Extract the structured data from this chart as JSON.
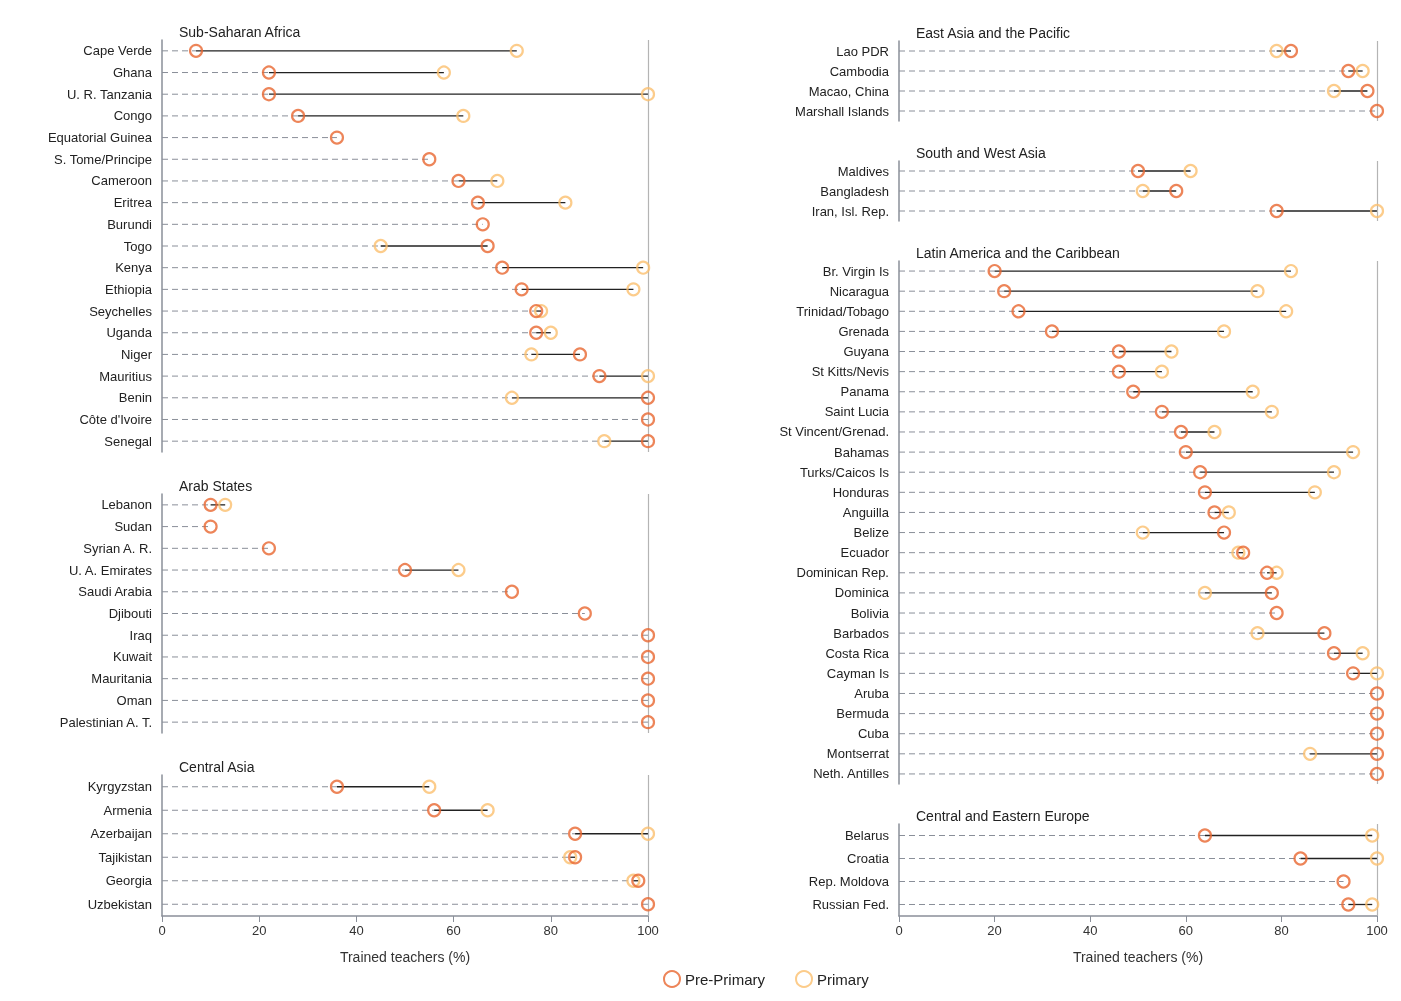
{
  "chart_data": [
    {
      "type": "scatter",
      "title": "Sub-Saharan Africa",
      "orientation": "horizontal",
      "marker": "circle",
      "grid": "y",
      "tick_labels": "y",
      "xlim": [
        0,
        100
      ],
      "xticks": [
        0,
        20,
        40,
        60,
        80,
        100
      ],
      "ref_lines": [
        {
          "axis": "x",
          "value": 100,
          "color": "#b4b4b4"
        }
      ],
      "categories": [
        "Cape Verde",
        "Ghana",
        "U. R. Tanzania",
        "Congo",
        "Equatorial Guinea",
        "S. Tome/Principe",
        "Cameroon",
        "Eritrea",
        "Burundi",
        "Togo",
        "Kenya",
        "Ethiopia",
        "Seychelles",
        "Uganda",
        "Niger",
        "Mauritius",
        "Benin",
        "Côte d'Ivoire",
        "Senegal"
      ],
      "series": [
        {
          "color": "#e8672f",
          "values": [
            7,
            22,
            22,
            28,
            36,
            55,
            61,
            65,
            66,
            67,
            70,
            74,
            77,
            77,
            86,
            90,
            100,
            100,
            100
          ]
        },
        {
          "color": "#fbbf6e",
          "values": [
            73,
            58,
            100,
            62,
            null,
            null,
            69,
            83,
            null,
            45,
            99,
            97,
            78,
            80,
            76,
            100,
            72,
            null,
            91
          ]
        }
      ]
    },
    {
      "type": "scatter",
      "title": "Arab States",
      "orientation": "horizontal",
      "marker": "circle",
      "grid": "y",
      "tick_labels": "y",
      "xlim": [
        0,
        100
      ],
      "xticks": [
        0,
        20,
        40,
        60,
        80,
        100
      ],
      "ref_lines": [
        {
          "axis": "x",
          "value": 100,
          "color": "#b4b4b4"
        }
      ],
      "categories": [
        "Lebanon",
        "Sudan",
        "Syrian A. R.",
        "U. A. Emirates",
        "Saudi Arabia",
        "Djibouti",
        "Iraq",
        "Kuwait",
        "Mauritania",
        "Oman",
        "Palestinian A. T."
      ],
      "series": [
        {
          "color": "#e8672f",
          "values": [
            10,
            10,
            22,
            50,
            72,
            87,
            100,
            100,
            100,
            100,
            100
          ]
        },
        {
          "color": "#fbbf6e",
          "values": [
            13,
            null,
            null,
            61,
            null,
            null,
            null,
            null,
            null,
            null,
            null
          ]
        }
      ]
    },
    {
      "type": "scatter",
      "title": "Central Asia",
      "orientation": "horizontal",
      "marker": "circle",
      "grid": "y",
      "xlabel": "Trained teachers (%)",
      "xlim": [
        0,
        100
      ],
      "xticks": [
        0,
        20,
        40,
        60,
        80,
        100
      ],
      "ref_lines": [
        {
          "axis": "x",
          "value": 100,
          "color": "#b4b4b4"
        }
      ],
      "categories": [
        "Kyrgyzstan",
        "Armenia",
        "Azerbaijan",
        "Tajikistan",
        "Georgia",
        "Uzbekistan"
      ],
      "series": [
        {
          "color": "#e8672f",
          "values": [
            36,
            56,
            85,
            85,
            98,
            100
          ]
        },
        {
          "color": "#fbbf6e",
          "values": [
            55,
            67,
            100,
            84,
            97,
            null
          ]
        }
      ]
    },
    {
      "type": "scatter",
      "title": "East Asia and the Pacific",
      "orientation": "horizontal",
      "marker": "circle",
      "grid": "y",
      "tick_labels": "y",
      "xlim": [
        0,
        100
      ],
      "xticks": [
        0,
        20,
        40,
        60,
        80,
        100
      ],
      "ref_lines": [
        {
          "axis": "x",
          "value": 100,
          "color": "#b4b4b4"
        }
      ],
      "categories": [
        "Lao PDR",
        "Cambodia",
        "Macao, China",
        "Marshall Islands"
      ],
      "series": [
        {
          "color": "#e8672f",
          "values": [
            82,
            94,
            98,
            100
          ]
        },
        {
          "color": "#fbbf6e",
          "values": [
            79,
            97,
            91,
            null
          ]
        }
      ]
    },
    {
      "type": "scatter",
      "title": "South and West Asia",
      "orientation": "horizontal",
      "marker": "circle",
      "grid": "y",
      "tick_labels": "y",
      "xlim": [
        0,
        100
      ],
      "xticks": [
        0,
        20,
        40,
        60,
        80,
        100
      ],
      "ref_lines": [
        {
          "axis": "x",
          "value": 100,
          "color": "#b4b4b4"
        }
      ],
      "categories": [
        "Maldives",
        "Bangladesh",
        "Iran, Isl. Rep."
      ],
      "series": [
        {
          "color": "#e8672f",
          "values": [
            50,
            58,
            79
          ]
        },
        {
          "color": "#fbbf6e",
          "values": [
            61,
            51,
            100
          ]
        }
      ]
    },
    {
      "type": "scatter",
      "title": "Latin America and the Caribbean",
      "orientation": "horizontal",
      "marker": "circle",
      "grid": "y",
      "tick_labels": "y",
      "xlim": [
        0,
        100
      ],
      "xticks": [
        0,
        20,
        40,
        60,
        80,
        100
      ],
      "ref_lines": [
        {
          "axis": "x",
          "value": 100,
          "color": "#b4b4b4"
        }
      ],
      "categories": [
        "Br. Virgin Is",
        "Nicaragua",
        "Trinidad/Tobago",
        "Grenada",
        "Guyana",
        "St Kitts/Nevis",
        "Panama",
        "Saint Lucia",
        "St Vincent/Grenad.",
        "Bahamas",
        "Turks/Caicos Is",
        "Honduras",
        "Anguilla",
        "Belize",
        "Ecuador",
        "Dominican Rep.",
        "Dominica",
        "Bolivia",
        "Barbados",
        "Costa Rica",
        "Cayman Is",
        "Aruba",
        "Bermuda",
        "Cuba",
        "Montserrat",
        "Neth. Antilles"
      ],
      "series": [
        {
          "color": "#e8672f",
          "values": [
            20,
            22,
            25,
            32,
            46,
            46,
            49,
            55,
            59,
            60,
            63,
            64,
            66,
            68,
            72,
            77,
            78,
            79,
            89,
            91,
            95,
            100,
            100,
            100,
            100,
            100
          ]
        },
        {
          "color": "#fbbf6e",
          "values": [
            82,
            75,
            81,
            68,
            57,
            55,
            74,
            78,
            66,
            95,
            91,
            87,
            69,
            51,
            71,
            79,
            64,
            null,
            75,
            97,
            100,
            null,
            null,
            null,
            86,
            null
          ]
        }
      ]
    },
    {
      "type": "scatter",
      "title": "Central and Eastern Europe",
      "orientation": "horizontal",
      "marker": "circle",
      "grid": "y",
      "xlabel": "Trained teachers (%)",
      "legend": "bottom",
      "xlim": [
        0,
        100
      ],
      "xticks": [
        0,
        20,
        40,
        60,
        80,
        100
      ],
      "ref_lines": [
        {
          "axis": "x",
          "value": 100,
          "color": "#b4b4b4"
        }
      ],
      "categories": [
        "Belarus",
        "Croatia",
        "Rep. Moldova",
        "Russian Fed."
      ],
      "series": [
        {
          "name": "Pre-Primary",
          "color": "#e8672f",
          "values": [
            64,
            84,
            93,
            94
          ]
        },
        {
          "name": "Primary",
          "color": "#fbbf6e",
          "values": [
            99,
            100,
            null,
            99
          ]
        }
      ]
    }
  ]
}
